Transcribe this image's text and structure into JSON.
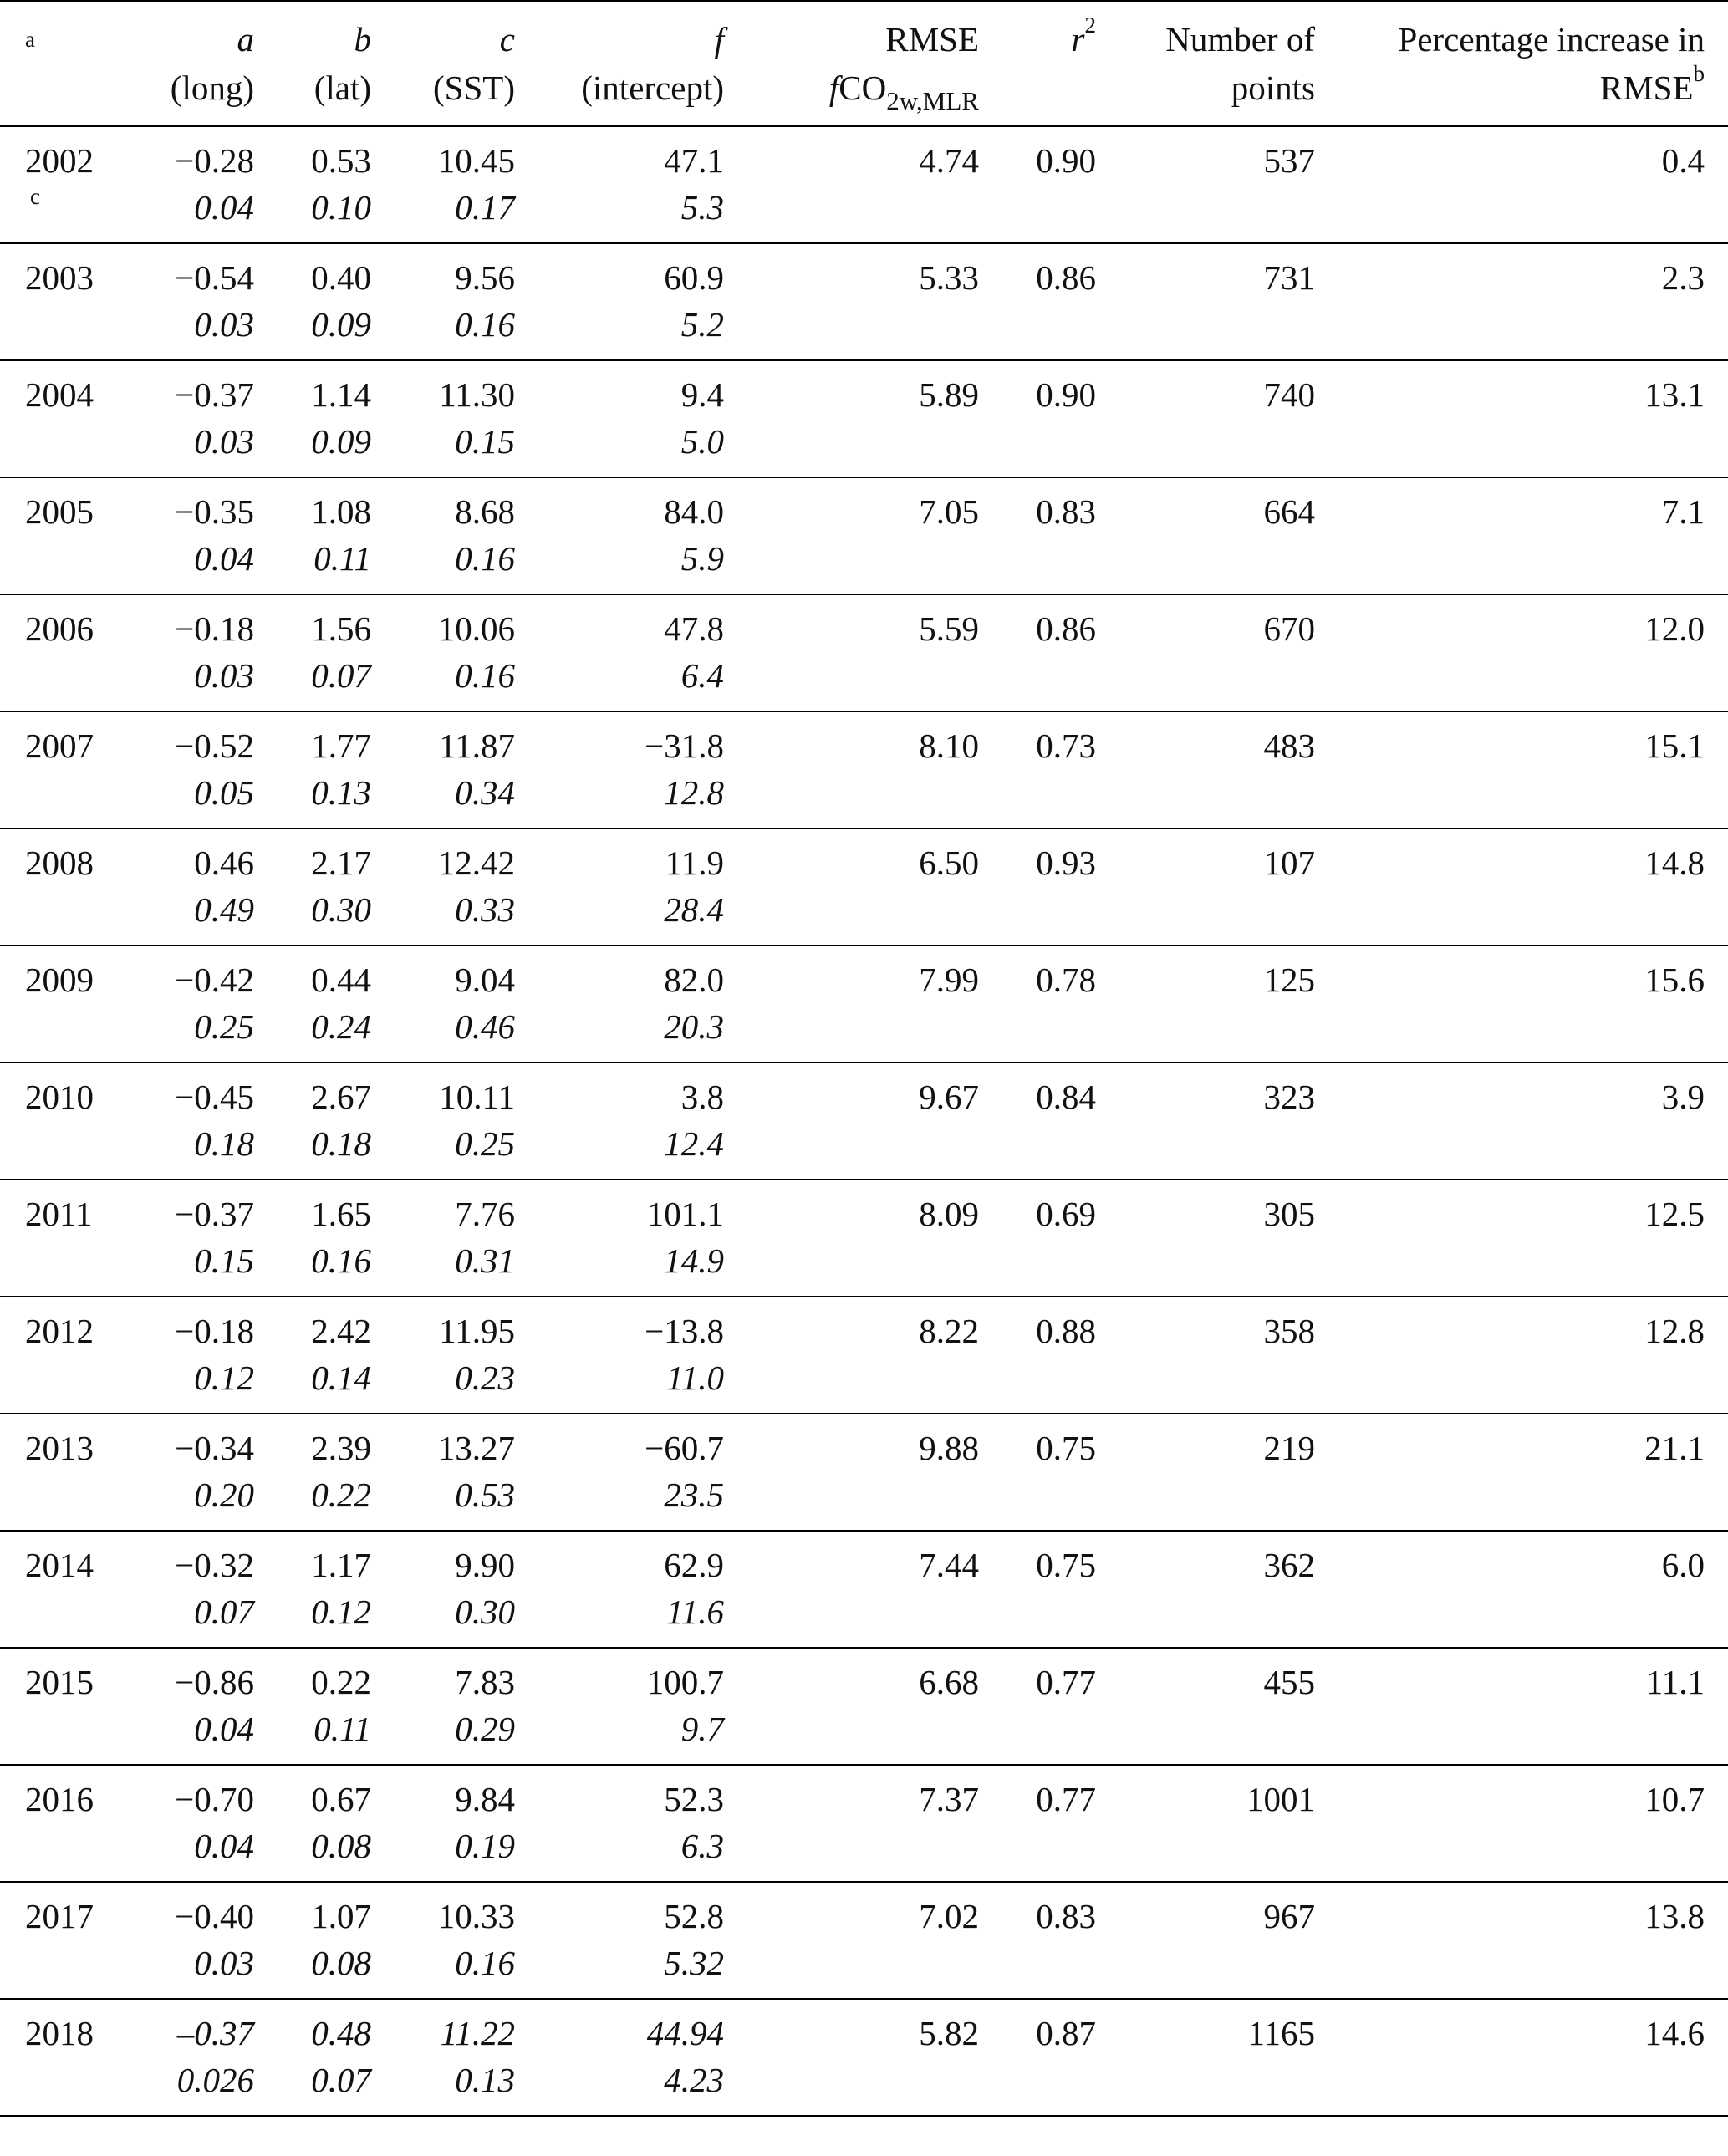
{
  "table": {
    "corner_note": "a",
    "headers": {
      "a": {
        "symbol": "a",
        "desc": "(long)"
      },
      "b": {
        "symbol": "b",
        "desc": "(lat)"
      },
      "c": {
        "symbol": "c",
        "desc": "(SST)"
      },
      "f": {
        "symbol": "f",
        "desc": "(intercept)"
      },
      "rmse": {
        "line1": "RMSE",
        "f": "f",
        "co2": "CO",
        "sub": "2w,MLR"
      },
      "r2": {
        "symbol": "r",
        "exp": "2"
      },
      "points": {
        "line1": "Number of",
        "line2": "points"
      },
      "pct": {
        "line1": "Percentage increase in",
        "line2": "RMSE",
        "note": "b"
      }
    },
    "rows": [
      {
        "year": "2002",
        "note": "c",
        "a": "−0.28",
        "a_err": "0.04",
        "b": "0.53",
        "b_err": "0.10",
        "c": "10.45",
        "c_err": "0.17",
        "f": "47.1",
        "f_err": "5.3",
        "rmse": "4.74",
        "r2": "0.90",
        "points": "537",
        "pct": "0.4"
      },
      {
        "year": "2003",
        "note": "",
        "a": "−0.54",
        "a_err": "0.03",
        "b": "0.40",
        "b_err": "0.09",
        "c": "9.56",
        "c_err": "0.16",
        "f": "60.9",
        "f_err": "5.2",
        "rmse": "5.33",
        "r2": "0.86",
        "points": "731",
        "pct": "2.3"
      },
      {
        "year": "2004",
        "note": "",
        "a": "−0.37",
        "a_err": "0.03",
        "b": "1.14",
        "b_err": "0.09",
        "c": "11.30",
        "c_err": "0.15",
        "f": "9.4",
        "f_err": "5.0",
        "rmse": "5.89",
        "r2": "0.90",
        "points": "740",
        "pct": "13.1"
      },
      {
        "year": "2005",
        "note": "",
        "a": "−0.35",
        "a_err": "0.04",
        "b": "1.08",
        "b_err": "0.11",
        "c": "8.68",
        "c_err": "0.16",
        "f": "84.0",
        "f_err": "5.9",
        "rmse": "7.05",
        "r2": "0.83",
        "points": "664",
        "pct": "7.1"
      },
      {
        "year": "2006",
        "note": "",
        "a": "−0.18",
        "a_err": "0.03",
        "b": "1.56",
        "b_err": "0.07",
        "c": "10.06",
        "c_err": "0.16",
        "f": "47.8",
        "f_err": "6.4",
        "rmse": "5.59",
        "r2": "0.86",
        "points": "670",
        "pct": "12.0"
      },
      {
        "year": "2007",
        "note": "",
        "a": "−0.52",
        "a_err": "0.05",
        "b": "1.77",
        "b_err": "0.13",
        "c": "11.87",
        "c_err": "0.34",
        "f": "−31.8",
        "f_err": "12.8",
        "rmse": "8.10",
        "r2": "0.73",
        "points": "483",
        "pct": "15.1"
      },
      {
        "year": "2008",
        "note": "",
        "a": "0.46",
        "a_err": "0.49",
        "b": "2.17",
        "b_err": "0.30",
        "c": "12.42",
        "c_err": "0.33",
        "f": "11.9",
        "f_err": "28.4",
        "rmse": "6.50",
        "r2": "0.93",
        "points": "107",
        "pct": "14.8"
      },
      {
        "year": "2009",
        "note": "",
        "a": "−0.42",
        "a_err": "0.25",
        "b": "0.44",
        "b_err": "0.24",
        "c": "9.04",
        "c_err": "0.46",
        "f": "82.0",
        "f_err": "20.3",
        "rmse": "7.99",
        "r2": "0.78",
        "points": "125",
        "pct": "15.6"
      },
      {
        "year": "2010",
        "note": "",
        "a": "−0.45",
        "a_err": "0.18",
        "b": "2.67",
        "b_err": "0.18",
        "c": "10.11",
        "c_err": "0.25",
        "f": "3.8",
        "f_err": "12.4",
        "rmse": "9.67",
        "r2": "0.84",
        "points": "323",
        "pct": "3.9"
      },
      {
        "year": "2011",
        "note": "",
        "a": "−0.37",
        "a_err": "0.15",
        "b": "1.65",
        "b_err": "0.16",
        "c": "7.76",
        "c_err": "0.31",
        "f": "101.1",
        "f_err": "14.9",
        "rmse": "8.09",
        "r2": "0.69",
        "points": "305",
        "pct": "12.5"
      },
      {
        "year": "2012",
        "note": "",
        "a": "−0.18",
        "a_err": "0.12",
        "b": "2.42",
        "b_err": "0.14",
        "c": "11.95",
        "c_err": "0.23",
        "f": "−13.8",
        "f_err": "11.0",
        "rmse": "8.22",
        "r2": "0.88",
        "points": "358",
        "pct": "12.8"
      },
      {
        "year": "2013",
        "note": "",
        "a": "−0.34",
        "a_err": "0.20",
        "b": "2.39",
        "b_err": "0.22",
        "c": "13.27",
        "c_err": "0.53",
        "f": "−60.7",
        "f_err": "23.5",
        "rmse": "9.88",
        "r2": "0.75",
        "points": "219",
        "pct": "21.1"
      },
      {
        "year": "2014",
        "note": "",
        "a": "−0.32",
        "a_err": "0.07",
        "b": "1.17",
        "b_err": "0.12",
        "c": "9.90",
        "c_err": "0.30",
        "f": "62.9",
        "f_err": "11.6",
        "rmse": "7.44",
        "r2": "0.75",
        "points": "362",
        "pct": "6.0"
      },
      {
        "year": "2015",
        "note": "",
        "a": "−0.86",
        "a_err": "0.04",
        "b": "0.22",
        "b_err": "0.11",
        "c": "7.83",
        "c_err": "0.29",
        "f": "100.7",
        "f_err": "9.7",
        "rmse": "6.68",
        "r2": "0.77",
        "points": "455",
        "pct": "11.1"
      },
      {
        "year": "2016",
        "note": "",
        "a": "−0.70",
        "a_err": "0.04",
        "b": "0.67",
        "b_err": "0.08",
        "c": "9.84",
        "c_err": "0.19",
        "f": "52.3",
        "f_err": "6.3",
        "rmse": "7.37",
        "r2": "0.77",
        "points": "1001",
        "pct": "10.7"
      },
      {
        "year": "2017",
        "note": "",
        "a": "−0.40",
        "a_err": "0.03",
        "b": "1.07",
        "b_err": "0.08",
        "c": "10.33",
        "c_err": "0.16",
        "f": "52.8",
        "f_err": "5.32",
        "rmse": "7.02",
        "r2": "0.83",
        "points": "967",
        "pct": "13.8"
      },
      {
        "year": "2018",
        "note": "",
        "italic_values": true,
        "a": "–0.37",
        "a_err": "0.026",
        "b": "0.48",
        "b_err": "0.07",
        "c": "11.22",
        "c_err": "0.13",
        "f": "44.94",
        "f_err": "4.23",
        "rmse": "5.82",
        "r2": "0.87",
        "points": "1165",
        "pct": "14.6"
      }
    ]
  }
}
